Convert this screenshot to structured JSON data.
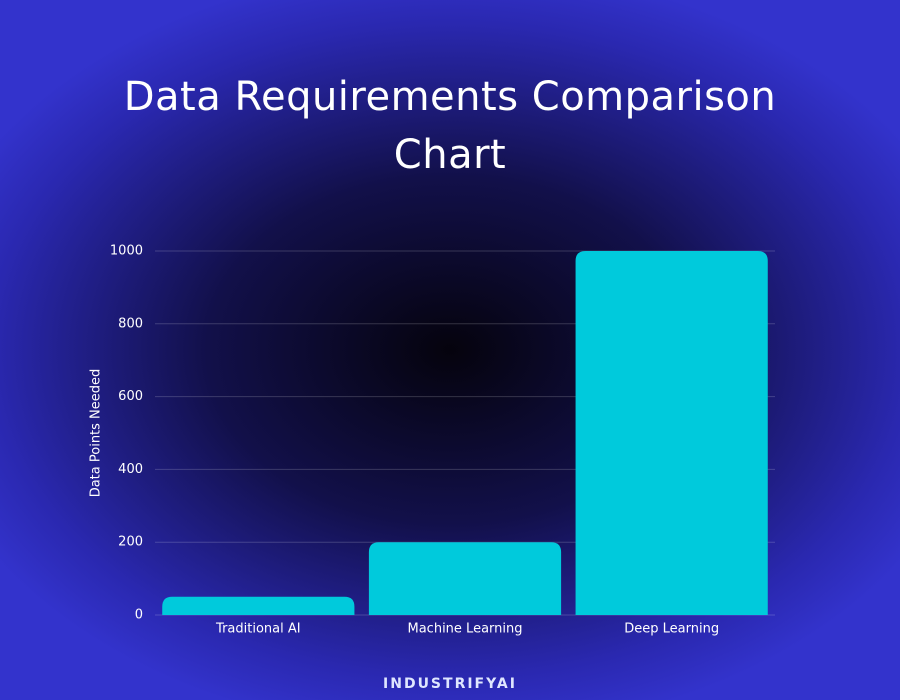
{
  "chart_data": {
    "type": "bar",
    "title": "Data Requirements Comparison Chart",
    "categories": [
      "Traditional AI",
      "Machine Learning",
      "Deep Learning"
    ],
    "values": [
      50,
      200,
      1000
    ],
    "color": "#00cadc",
    "y_label": "Data Points Needed",
    "ylim": [
      0,
      1000
    ],
    "yticks": [
      0,
      200,
      400,
      600,
      800,
      1000
    ],
    "grid": true
  },
  "footer": {
    "brand": "INDUSTRIFYAI"
  }
}
